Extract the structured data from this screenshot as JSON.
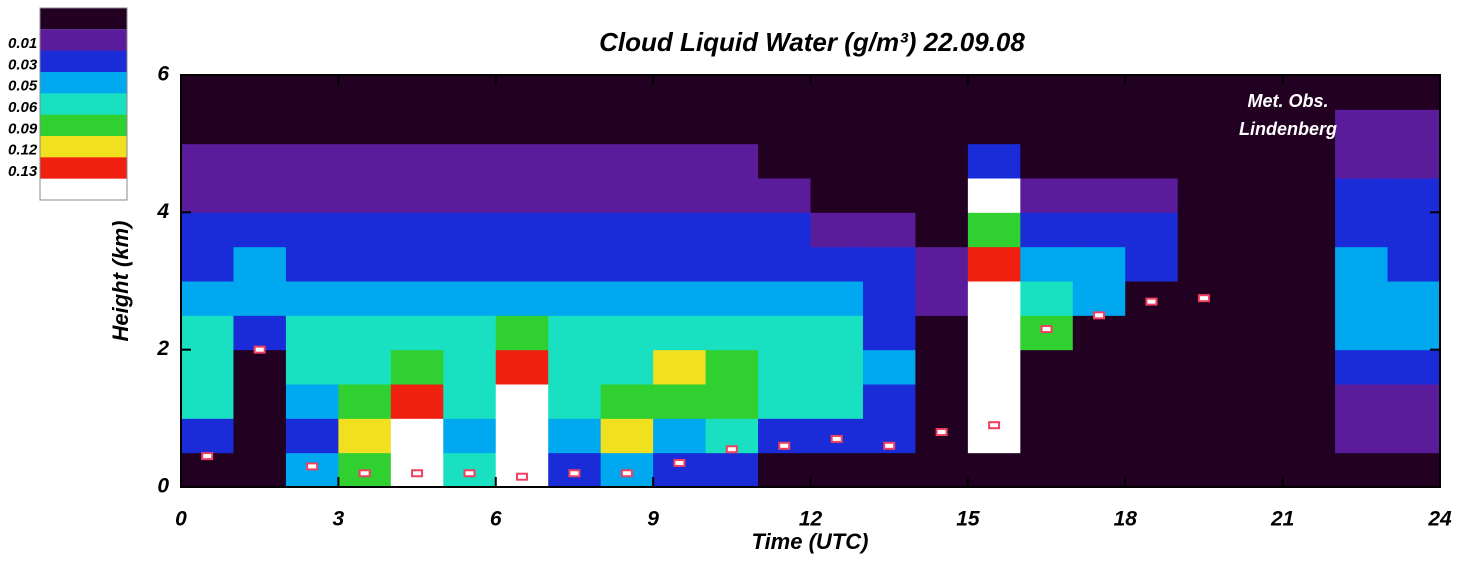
{
  "chart_data": {
    "type": "heatmap",
    "title": "Cloud Liquid Water (g/m³) 22.09.08",
    "xlabel": "Time (UTC)",
    "ylabel": "Height (km)",
    "annotation": [
      "Met. Obs.",
      "Lindenberg"
    ],
    "xlim": [
      0,
      24
    ],
    "ylim": [
      0,
      6
    ],
    "xticks": [
      0,
      3,
      6,
      9,
      12,
      15,
      18,
      21,
      24
    ],
    "yticks": [
      0,
      2,
      4,
      6
    ],
    "x_edges": [
      0,
      1,
      2,
      3,
      4,
      5,
      6,
      7,
      8,
      9,
      10,
      11,
      12,
      13,
      14,
      15,
      16,
      17,
      18,
      19,
      20,
      21,
      22,
      23,
      24
    ],
    "y_edges": [
      0,
      0.5,
      1,
      1.5,
      2,
      2.5,
      3,
      3.5,
      4,
      4.5,
      5,
      5.5,
      6
    ],
    "values": [
      [
        0,
        0.04,
        0.06,
        0.07,
        0.06,
        0.05,
        0.04,
        0.03,
        0.02,
        0.01,
        0,
        0
      ],
      [
        0,
        0,
        0,
        0,
        0.04,
        0.05,
        0.05,
        0.04,
        0.02,
        0.01,
        0,
        0
      ],
      [
        0.05,
        0.04,
        0.05,
        0.06,
        0.06,
        0.05,
        0.04,
        0.03,
        0.02,
        0.01,
        0,
        0
      ],
      [
        0.09,
        0.12,
        0.09,
        0.07,
        0.06,
        0.05,
        0.04,
        0.03,
        0.02,
        0.01,
        0,
        0
      ],
      [
        0.14,
        0.14,
        0.13,
        0.09,
        0.06,
        0.05,
        0.04,
        0.03,
        0.02,
        0.01,
        0,
        0
      ],
      [
        0.06,
        0.05,
        0.07,
        0.07,
        0.06,
        0.05,
        0.04,
        0.03,
        0.02,
        0.01,
        0,
        0
      ],
      [
        0.14,
        0.14,
        0.14,
        0.13,
        0.09,
        0.05,
        0.04,
        0.03,
        0.02,
        0.01,
        0,
        0
      ],
      [
        0.04,
        0.05,
        0.07,
        0.07,
        0.06,
        0.05,
        0.04,
        0.03,
        0.02,
        0.01,
        0,
        0
      ],
      [
        0.05,
        0.12,
        0.09,
        0.08,
        0.06,
        0.05,
        0.04,
        0.03,
        0.02,
        0.01,
        0,
        0
      ],
      [
        0.04,
        0.05,
        0.09,
        0.12,
        0.07,
        0.05,
        0.04,
        0.03,
        0.02,
        0.01,
        0,
        0
      ],
      [
        0.04,
        0.06,
        0.09,
        0.09,
        0.07,
        0.05,
        0.04,
        0.03,
        0.02,
        0.01,
        0,
        0
      ],
      [
        0,
        0.04,
        0.07,
        0.07,
        0.06,
        0.05,
        0.04,
        0.03,
        0.01,
        0,
        0,
        0
      ],
      [
        0,
        0.04,
        0.06,
        0.07,
        0.06,
        0.05,
        0.03,
        0.01,
        0,
        0,
        0,
        0
      ],
      [
        0,
        0.03,
        0.04,
        0.05,
        0.04,
        0.04,
        0.03,
        0.02,
        0,
        0,
        0,
        0
      ],
      [
        0,
        0,
        0,
        0,
        0,
        0.02,
        0.01,
        0,
        0,
        0,
        0,
        0
      ],
      [
        0,
        0.14,
        0.14,
        0.14,
        0.14,
        0.14,
        0.13,
        0.09,
        0.14,
        0.03,
        0,
        0
      ],
      [
        0,
        0,
        0,
        0,
        0.09,
        0.07,
        0.05,
        0.03,
        0.01,
        0,
        0,
        0
      ],
      [
        0,
        0,
        0,
        0,
        0,
        0.05,
        0.05,
        0.03,
        0.01,
        0,
        0,
        0
      ],
      [
        0,
        0,
        0,
        0,
        0,
        0,
        0.04,
        0.03,
        0.01,
        0,
        0,
        0
      ],
      [
        0,
        0,
        0,
        0,
        0,
        0,
        0,
        0,
        0,
        0,
        0,
        0
      ],
      [
        0,
        0,
        0,
        0,
        0,
        0,
        0,
        0,
        0,
        0,
        0,
        0
      ],
      [
        0,
        0,
        0,
        0,
        0,
        0,
        0,
        0,
        0,
        0,
        0,
        0
      ],
      [
        0,
        0.01,
        0.02,
        0.03,
        0.05,
        0.05,
        0.05,
        0.04,
        0.03,
        0.01,
        0.01,
        0
      ],
      [
        0,
        0.01,
        0.02,
        0.04,
        0.05,
        0.05,
        0.04,
        0.04,
        0.03,
        0.02,
        0.01,
        0
      ]
    ],
    "colorbar_ticks": [
      0.01,
      0.03,
      0.05,
      0.06,
      0.09,
      0.12,
      0.13
    ],
    "colorbar_colors": [
      "#5b1c9c",
      "#1a2cd8",
      "#00a8f0",
      "#18e0c0",
      "#30d030",
      "#f0e020",
      "#f02010"
    ],
    "under_color": "#220022",
    "over_color": "#ffffff",
    "cloud_base": {
      "color": "#f04060",
      "x": [
        0.5,
        1.5,
        2.5,
        3.5,
        4.5,
        5.5,
        6.5,
        7.5,
        8.5,
        9.5,
        10.5,
        11.5,
        12.5,
        13.5,
        14.5,
        15.5,
        16.5,
        17.5,
        18.5,
        19.5
      ],
      "values": [
        0.45,
        2.0,
        0.3,
        0.2,
        0.2,
        0.2,
        0.15,
        0.2,
        0.2,
        0.35,
        0.55,
        0.6,
        0.7,
        0.6,
        0.8,
        0.9,
        2.3,
        2.5,
        2.7,
        2.75
      ]
    }
  }
}
